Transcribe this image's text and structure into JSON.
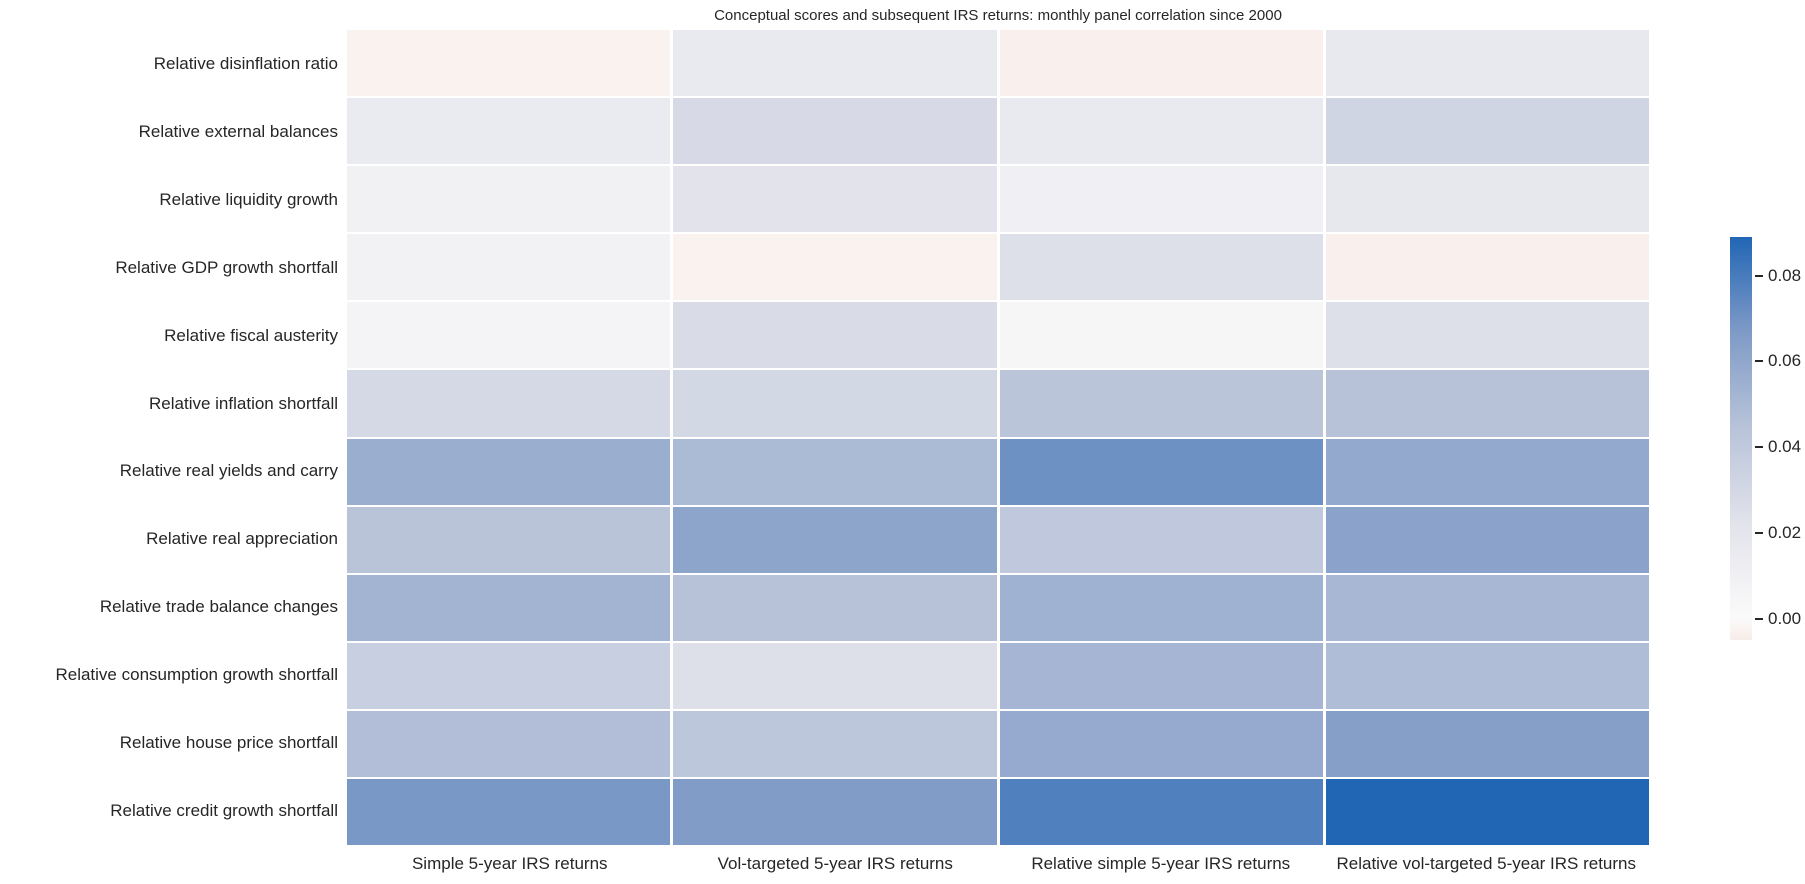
{
  "chart_data": {
    "type": "heatmap",
    "title": "Conceptual scores and subsequent IRS returns: monthly panel correlation since 2000",
    "rows": [
      "Relative disinflation ratio",
      "Relative external balances",
      "Relative liquidity growth",
      "Relative GDP growth shortfall",
      "Relative fiscal austerity",
      "Relative inflation shortfall",
      "Relative real yields and carry",
      "Relative real appreciation",
      "Relative trade balance changes",
      "Relative consumption growth shortfall",
      "Relative house price shortfall",
      "Relative credit growth shortfall"
    ],
    "columns": [
      "Simple 5-year IRS returns",
      "Vol-targeted 5-year IRS returns",
      "Relative simple 5-year IRS returns",
      "Relative vol-targeted 5-year IRS returns"
    ],
    "values": [
      [
        -0.003,
        0.016,
        -0.004,
        0.017
      ],
      [
        0.015,
        0.028,
        0.016,
        0.032
      ],
      [
        0.009,
        0.022,
        0.01,
        0.018
      ],
      [
        0.008,
        -0.003,
        0.024,
        -0.004
      ],
      [
        0.006,
        0.027,
        0.004,
        0.024
      ],
      [
        0.029,
        0.03,
        0.043,
        0.045
      ],
      [
        0.056,
        0.049,
        0.071,
        0.059
      ],
      [
        0.044,
        0.061,
        0.041,
        0.062
      ],
      [
        0.053,
        0.045,
        0.054,
        0.051
      ],
      [
        0.036,
        0.024,
        0.052,
        0.048
      ],
      [
        0.047,
        0.042,
        0.058,
        0.064
      ],
      [
        0.068,
        0.066,
        0.078,
        0.089
      ]
    ],
    "vmin": -0.005,
    "vmax": 0.089,
    "grid": false,
    "legend_position": "right-colorbar",
    "colorbar": {
      "ticks": [
        0.08,
        0.06,
        0.04,
        0.02,
        0.0
      ],
      "tick_labels": [
        "0.08",
        "0.06",
        "0.04",
        "0.02",
        "0.00"
      ]
    },
    "colormap_stops": [
      {
        "v": -0.005,
        "color": "#f8ece8"
      },
      {
        "v": 0.0,
        "color": "#fbfafa"
      },
      {
        "v": 0.011,
        "color": "#efeff3"
      },
      {
        "v": 0.022,
        "color": "#e2e3eb"
      },
      {
        "v": 0.0445,
        "color": "#b8c3d9"
      },
      {
        "v": 0.067,
        "color": "#7e9ac6"
      },
      {
        "v": 0.089,
        "color": "#2166b5"
      }
    ],
    "colors": {
      "text": "#262626",
      "background": "#ffffff",
      "cell_gap_line": "#ffffff",
      "max_cell": "#2166b5",
      "min_cell": "#f9f0ee"
    }
  }
}
